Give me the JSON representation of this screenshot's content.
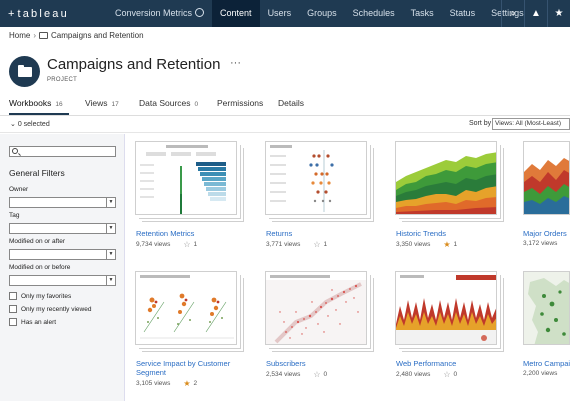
{
  "nav": {
    "logo_text": "tableau",
    "logo_mark": "+",
    "items": [
      {
        "label": "Conversion Metrics"
      },
      {
        "label": "Content"
      },
      {
        "label": "Users"
      },
      {
        "label": "Groups"
      },
      {
        "label": "Schedules"
      },
      {
        "label": "Tasks"
      },
      {
        "label": "Status"
      },
      {
        "label": "Settings"
      }
    ],
    "active": "Content",
    "icons": [
      "search-icon",
      "alert-icon",
      "star-icon"
    ],
    "icon_glyphs": {
      "search": "⌕",
      "alert": "▲",
      "star": "★"
    }
  },
  "breadcrumb": {
    "home": "Home",
    "sep": "›",
    "project": "Campaigns and Retention"
  },
  "header": {
    "title": "Campaigns and Retention",
    "more": "···",
    "subtitle": "PROJECT"
  },
  "tabs": [
    {
      "label": "Workbooks",
      "count": "16"
    },
    {
      "label": "Views",
      "count": "17"
    },
    {
      "label": "Data Sources",
      "count": "0"
    },
    {
      "label": "Permissions",
      "count": ""
    },
    {
      "label": "Details",
      "count": ""
    }
  ],
  "selection": {
    "selected": "0 selected",
    "sort_label": "Sort by",
    "sort_value": "Views: All (Most-Least)"
  },
  "filters": {
    "title": "General Filters",
    "owner_label": "Owner",
    "tag_label": "Tag",
    "modified_after_label": "Modified on or after",
    "modified_before_label": "Modified on or before",
    "checkboxes": [
      "Only my favorites",
      "Only my recently viewed",
      "Has an alert"
    ]
  },
  "cards": [
    {
      "name": "Retention Metrics",
      "views": "9,734 views",
      "favorites": "1",
      "favorited": false
    },
    {
      "name": "Returns",
      "views": "3,771 views",
      "favorites": "1",
      "favorited": false
    },
    {
      "name": "Historic Trends",
      "views": "3,350 views",
      "favorites": "1",
      "favorited": true
    },
    {
      "name": "Major Orders",
      "views": "3,172 views",
      "favorites": "",
      "favorited": false
    },
    {
      "name": "Service Impact by Customer Segment",
      "views": "3,105 views",
      "favorites": "2",
      "favorited": true
    },
    {
      "name": "Subscribers",
      "views": "2,534 views",
      "favorites": "0",
      "favorited": false
    },
    {
      "name": "Web Performance",
      "views": "2,480 views",
      "favorites": "0",
      "favorited": false
    },
    {
      "name": "Metro Campaign",
      "views": "2,200 views",
      "favorites": "",
      "favorited": false
    }
  ],
  "colors": {
    "nav_bg": "#1f3a52",
    "nav_active": "#0c2238",
    "link": "#2a6dc4",
    "star_fav": "#d98b1c"
  }
}
